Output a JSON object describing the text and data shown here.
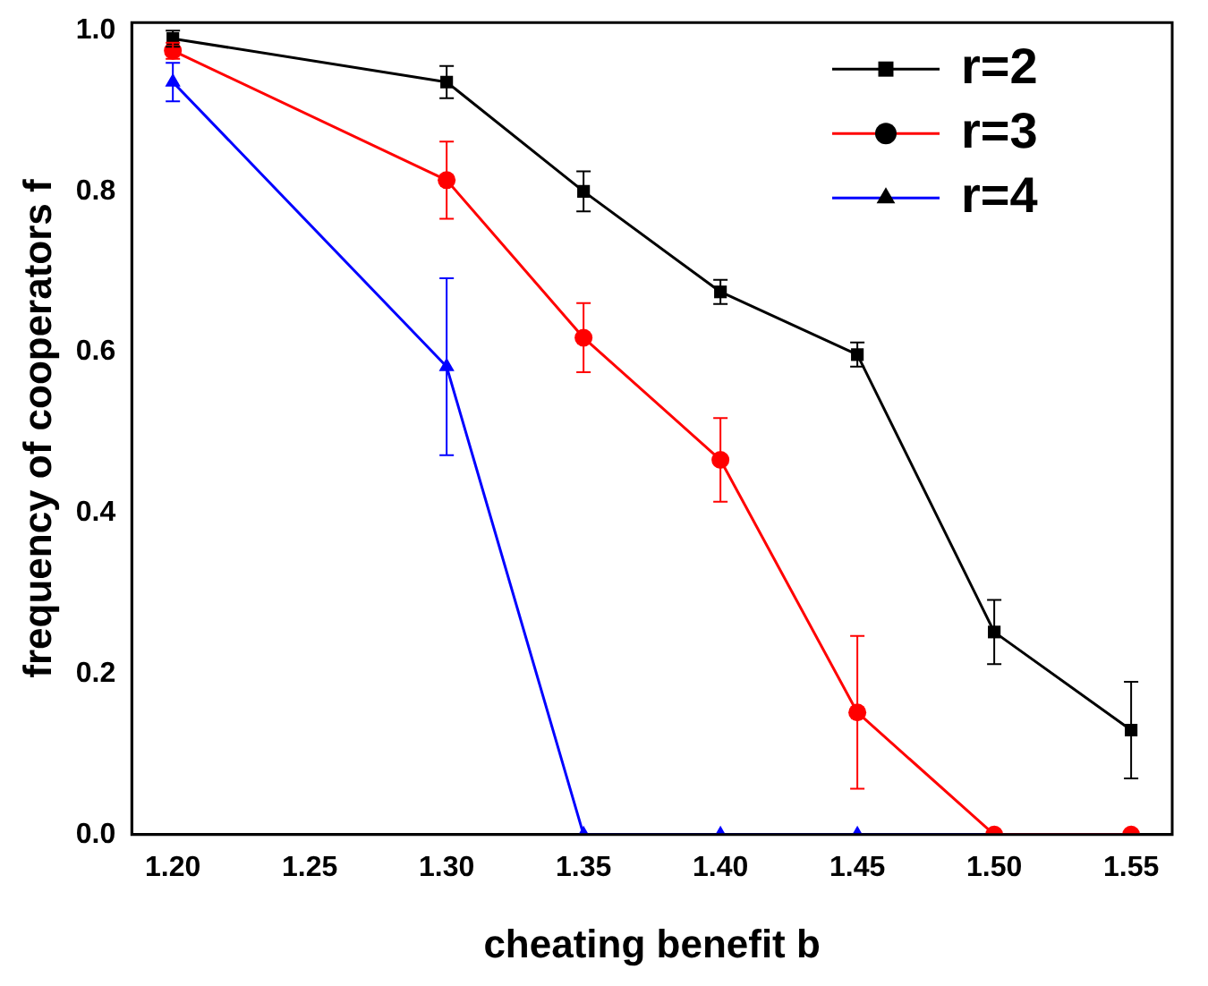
{
  "chart_data": {
    "type": "line",
    "xlabel": "cheating benefit b",
    "ylabel": "frequency of cooperators f",
    "x": [
      1.2,
      1.3,
      1.35,
      1.4,
      1.45,
      1.5,
      1.55
    ],
    "series": [
      {
        "name": "r=2",
        "color": "#000000",
        "marker": "square",
        "values": [
          0.99,
          0.936,
          0.8,
          0.675,
          0.597,
          0.252,
          0.13
        ],
        "errors": [
          0.01,
          0.02,
          0.025,
          0.015,
          0.015,
          0.04,
          0.06
        ]
      },
      {
        "name": "r=3",
        "color": "#ff0000",
        "marker": "circle",
        "values": [
          0.975,
          0.814,
          0.618,
          0.466,
          0.152,
          0,
          0
        ],
        "errors": [
          0.01,
          0.048,
          0.043,
          0.052,
          0.095,
          null,
          null
        ]
      },
      {
        "name": "r=4",
        "color": "#0000ff",
        "marker": "triangle",
        "values": [
          0.936,
          0.582,
          0,
          0,
          0,
          0,
          0
        ],
        "errors": [
          0.024,
          0.11,
          null,
          null,
          null,
          null,
          null
        ]
      }
    ],
    "xlim": [
      1.185,
      1.565
    ],
    "xticks": [
      {
        "value": 1.2,
        "label": "1.20"
      },
      {
        "value": 1.25,
        "label": "1.25"
      },
      {
        "value": 1.3,
        "label": "1.30"
      },
      {
        "value": 1.35,
        "label": "1.35"
      },
      {
        "value": 1.4,
        "label": "1.40"
      },
      {
        "value": 1.45,
        "label": "1.45"
      },
      {
        "value": 1.5,
        "label": "1.50"
      },
      {
        "value": 1.55,
        "label": "1.55"
      }
    ],
    "ylim": [
      0,
      1.01
    ],
    "yticks": [
      {
        "value": 0,
        "label": "0.0"
      },
      {
        "value": 0.2,
        "label": "0.2"
      },
      {
        "value": 0.4,
        "label": "0.4"
      },
      {
        "value": 0.6,
        "label": "0.6"
      },
      {
        "value": 0.8,
        "label": "0.8"
      },
      {
        "value": 1,
        "label": "1.0"
      }
    ],
    "grid": false,
    "legend": "top right",
    "line_style": "solid"
  }
}
